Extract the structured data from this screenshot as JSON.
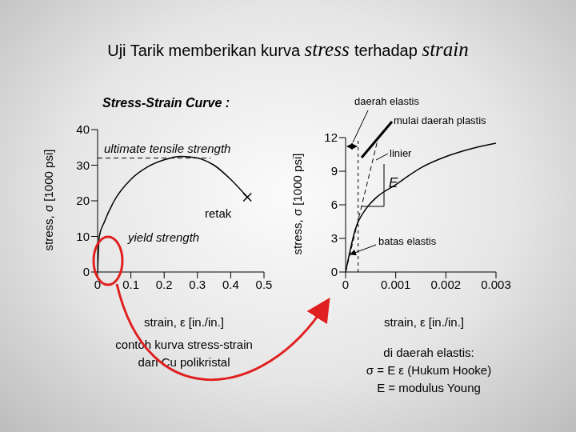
{
  "slide": {
    "title": [
      "Uji Tarik memberikan kurva",
      "stress",
      "terhadap",
      "strain"
    ],
    "subtitle": "Stress-Strain Curve :"
  },
  "chart_data": [
    {
      "type": "line",
      "x": [
        0,
        0.005,
        0.02,
        0.05,
        0.1,
        0.15,
        0.2,
        0.25,
        0.3,
        0.35,
        0.4,
        0.45
      ],
      "values": [
        0,
        10,
        14,
        20,
        26,
        29.5,
        31.5,
        32.5,
        32,
        30,
        26,
        21
      ],
      "color": "#000000",
      "xlim": [
        0,
        0.5
      ],
      "xticks": [
        0,
        0.1,
        0.2,
        0.3,
        0.4,
        0.5
      ],
      "ylim": [
        0,
        40
      ],
      "yticks": [
        0,
        10,
        20,
        30,
        40
      ],
      "x_label": "strain, ε [in./in.]",
      "y_label": "stress, σ [1000 psi]",
      "ultimate_tensile_strength": {
        "label": "ultimate tensile strength",
        "value": 32,
        "x": [
          0,
          0.34
        ]
      },
      "fracture": {
        "label": "retak",
        "marker": "x"
      },
      "yield_strength": {
        "label": "yield strength"
      },
      "caption": [
        "contoh kurva stress-strain",
        "dari Cu polikristal"
      ]
    },
    {
      "type": "line",
      "x": [
        0,
        0.0002,
        0.0004,
        0.0006,
        0.001,
        0.0015,
        0.002,
        0.0025,
        0.003
      ],
      "values": [
        0,
        3.9,
        5.6,
        6.6,
        7.8,
        9.3,
        10.3,
        11,
        11.5
      ],
      "color": "#000000",
      "xlim": [
        0,
        0.003
      ],
      "xticks": [
        0,
        0.001,
        0.002,
        0.003
      ],
      "ylim": [
        0,
        12
      ],
      "yticks": [
        0,
        3,
        6,
        9,
        12
      ],
      "x_label": "strain, ε [in./in.]",
      "y_label": "stress, σ [1000 psi]",
      "linear_fit": {
        "label": "linier",
        "x": [
          0,
          0.00063
        ],
        "values": [
          0,
          11.6
        ],
        "line_style": "dashed"
      },
      "modulus_label": "E",
      "elastic_region": {
        "label": "daerah elastis",
        "x": [
          0,
          0.00025
        ]
      },
      "plastic_start": {
        "label": "mulai daerah plastis"
      },
      "elastic_limit": {
        "label": "batas elastis"
      },
      "caption": [
        "di daerah elastis:",
        "σ = E ε (Hukum Hooke)",
        "E = modulus Young"
      ]
    }
  ]
}
